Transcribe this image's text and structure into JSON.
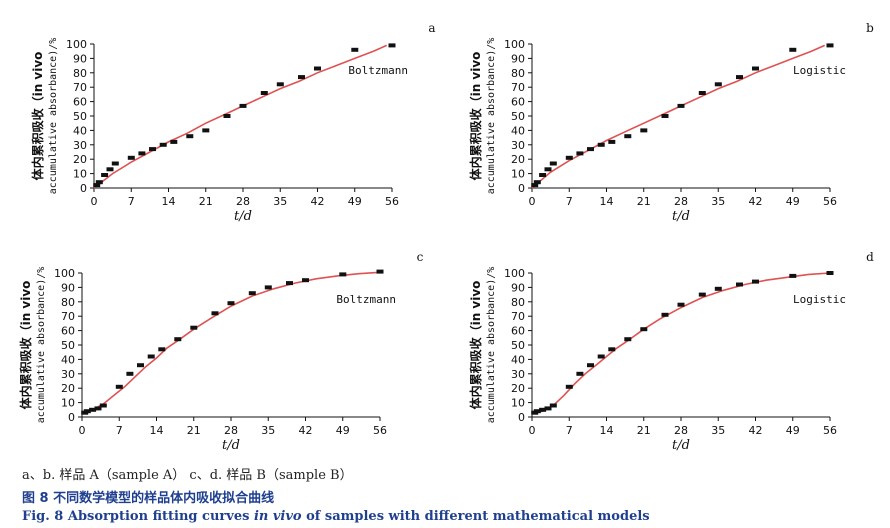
{
  "style": {
    "curve_color": "#e05252",
    "point_color": "#111111",
    "caption_color": "#1f3f8f"
  },
  "chart_data": [
    {
      "panel": "a",
      "type": "scatter",
      "model_label": "Boltzmann",
      "ylabel_cn": "体内累积吸收（in vivo",
      "ylabel_en": "accumulative absorbance)/%",
      "xlabel": "t/d",
      "xlim": [
        0,
        56
      ],
      "ylim": [
        0,
        100
      ],
      "xticks": [
        0,
        7,
        14,
        21,
        28,
        35,
        42,
        49,
        56
      ],
      "yticks": [
        0,
        10,
        20,
        30,
        40,
        50,
        60,
        70,
        80,
        90,
        100
      ],
      "grid": false,
      "series": [
        {
          "x": [
            0.5,
            1,
            2,
            3,
            4,
            7,
            9,
            11,
            13,
            15,
            18,
            21,
            25,
            28,
            32,
            35,
            39,
            42,
            49,
            56
          ],
          "y": [
            2,
            4,
            9,
            13,
            17,
            21,
            24,
            27,
            30,
            32,
            36,
            40,
            50,
            57,
            66,
            72,
            77,
            83,
            96,
            99
          ]
        },
        {
          "x": [
            0,
            3.5,
            7,
            10.5,
            14,
            17.5,
            21,
            24.5,
            28,
            31.5,
            35,
            38.5,
            42,
            45.5,
            49,
            52.5,
            55
          ],
          "y": [
            0,
            10,
            18,
            25,
            32,
            38,
            45,
            51,
            57,
            63,
            69,
            74,
            80,
            85,
            90,
            95,
            99
          ]
        }
      ]
    },
    {
      "panel": "b",
      "type": "scatter",
      "model_label": "Logistic",
      "ylabel_cn": "体内累积吸收（in vivo",
      "ylabel_en": "accumulative absorbance)/%",
      "xlabel": "t/d",
      "xlim": [
        0,
        56
      ],
      "ylim": [
        0,
        100
      ],
      "xticks": [
        0,
        7,
        14,
        21,
        28,
        35,
        42,
        49,
        56
      ],
      "yticks": [
        0,
        10,
        20,
        30,
        40,
        50,
        60,
        70,
        80,
        90,
        100
      ],
      "grid": false,
      "series": [
        {
          "x": [
            0.5,
            1,
            2,
            3,
            4,
            7,
            9,
            11,
            13,
            15,
            18,
            21,
            25,
            28,
            32,
            35,
            39,
            42,
            49,
            56
          ],
          "y": [
            2,
            4,
            9,
            13,
            17,
            21,
            24,
            27,
            30,
            32,
            36,
            40,
            50,
            57,
            66,
            72,
            77,
            83,
            96,
            99
          ]
        },
        {
          "x": [
            0,
            3.5,
            7,
            10.5,
            14,
            17.5,
            21,
            24.5,
            28,
            31.5,
            35,
            38.5,
            42,
            45.5,
            49,
            52.5,
            55
          ],
          "y": [
            0,
            11,
            19,
            26,
            33,
            39,
            45,
            51,
            57,
            63,
            69,
            74,
            80,
            85,
            90,
            95,
            99
          ]
        }
      ]
    },
    {
      "panel": "c",
      "type": "scatter",
      "model_label": "Boltzmann",
      "ylabel_cn": "体内累积吸收（in vivo",
      "ylabel_en": "accumulative absorbance)/%",
      "xlabel": "t/d",
      "xlim": [
        0,
        56
      ],
      "ylim": [
        0,
        100
      ],
      "xticks": [
        0,
        7,
        14,
        21,
        28,
        35,
        42,
        49,
        56
      ],
      "yticks": [
        0,
        10,
        20,
        30,
        40,
        50,
        60,
        70,
        80,
        90,
        100
      ],
      "grid": false,
      "series": [
        {
          "x": [
            0.5,
            1,
            2,
            3,
            4,
            7,
            9,
            11,
            13,
            15,
            18,
            21,
            25,
            28,
            32,
            35,
            39,
            42,
            49,
            56
          ],
          "y": [
            3,
            4,
            5,
            6,
            8,
            21,
            30,
            36,
            42,
            47,
            54,
            62,
            72,
            79,
            86,
            90,
            93,
            95,
            99,
            101
          ]
        },
        {
          "x": [
            0,
            2,
            4,
            6,
            8,
            10,
            12,
            14,
            16,
            18,
            21,
            24,
            28,
            32,
            36,
            40,
            44,
            48,
            52,
            56
          ],
          "y": [
            3,
            5,
            9,
            15,
            21,
            28,
            35,
            41,
            48,
            53,
            61,
            68,
            77,
            84,
            89,
            93,
            96,
            98,
            99.5,
            100.5
          ]
        }
      ]
    },
    {
      "panel": "d",
      "type": "scatter",
      "model_label": "Logistic",
      "ylabel_cn": "体内累积吸收（in vivo",
      "ylabel_en": "accumulative absorbance)/%",
      "xlabel": "t/d",
      "xlim": [
        0,
        56
      ],
      "ylim": [
        0,
        100
      ],
      "xticks": [
        0,
        7,
        14,
        21,
        28,
        35,
        42,
        49,
        56
      ],
      "yticks": [
        0,
        10,
        20,
        30,
        40,
        50,
        60,
        70,
        80,
        90,
        100
      ],
      "grid": false,
      "series": [
        {
          "x": [
            0.5,
            1,
            2,
            3,
            4,
            7,
            9,
            11,
            13,
            15,
            18,
            21,
            25,
            28,
            32,
            35,
            39,
            42,
            49,
            56
          ],
          "y": [
            3,
            4,
            5,
            6,
            8,
            21,
            30,
            36,
            42,
            47,
            54,
            61,
            71,
            78,
            85,
            89,
            92,
            94,
            98,
            100
          ]
        },
        {
          "x": [
            0,
            2,
            4,
            6,
            8,
            10,
            12,
            14,
            16,
            18,
            21,
            24,
            28,
            32,
            36,
            40,
            44,
            48,
            52,
            56
          ],
          "y": [
            3,
            4,
            8,
            15,
            23,
            30,
            36,
            42,
            48,
            53,
            61,
            68,
            76,
            83,
            88,
            92,
            95,
            97,
            99,
            100
          ]
        }
      ]
    }
  ],
  "caption": {
    "samples": "a、b. 样品 A（sample A）  c、d. 样品 B（sample B）",
    "title_cn": "图 8   不同数学模型的样品体内吸收拟合曲线",
    "title_en_prefix": "Fig. 8   Absorption fitting curves ",
    "title_en_italic": "in vivo",
    "title_en_suffix": " of samples with different mathematical models"
  }
}
